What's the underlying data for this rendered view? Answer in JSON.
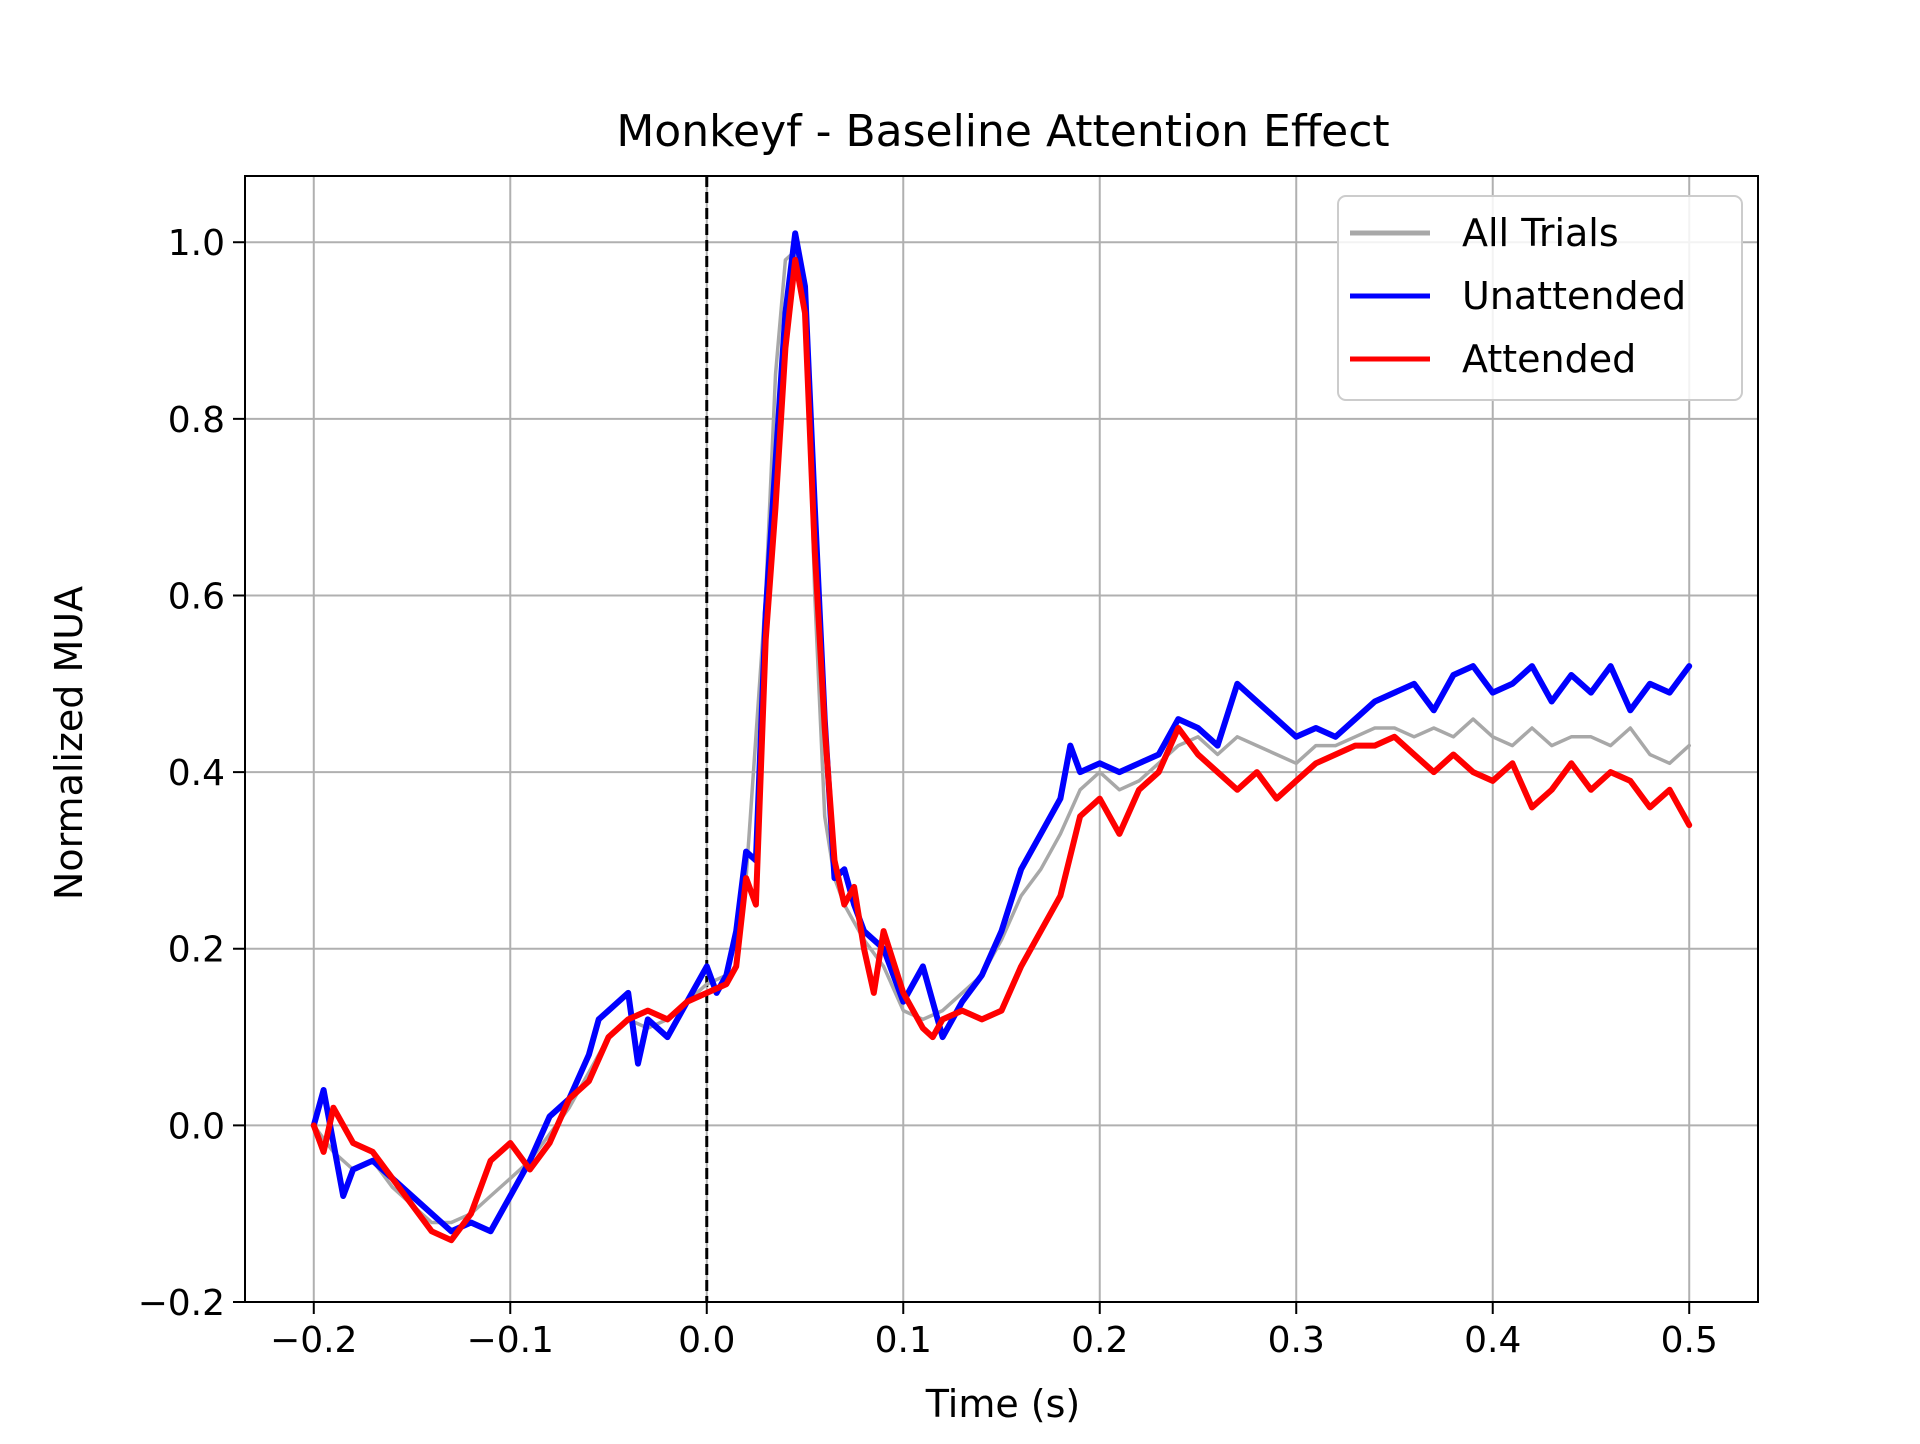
{
  "chart_data": {
    "type": "line",
    "title": "Monkeyf - Baseline Attention Effect",
    "xlabel": "Time (s)",
    "ylabel": "Normalized MUA",
    "xlim": [
      -0.235,
      0.535
    ],
    "ylim": [
      -0.2,
      1.075
    ],
    "xticks": [
      -0.2,
      -0.1,
      0.0,
      0.1,
      0.2,
      0.3,
      0.4,
      0.5
    ],
    "xtick_labels": [
      "−0.2",
      "−0.1",
      "0.0",
      "0.1",
      "0.2",
      "0.3",
      "0.4",
      "0.5"
    ],
    "yticks": [
      -0.2,
      0.0,
      0.2,
      0.4,
      0.6,
      0.8,
      1.0
    ],
    "ytick_labels": [
      "−0.2",
      "0.0",
      "0.2",
      "0.4",
      "0.6",
      "0.8",
      "1.0"
    ],
    "grid": true,
    "legend_position": "top-right",
    "vline": {
      "x": 0.0,
      "style": "dashed",
      "color": "#000000"
    },
    "series": [
      {
        "name": "All Trials",
        "color": "#a8a8a8",
        "x": [
          -0.2,
          -0.19,
          -0.18,
          -0.17,
          -0.16,
          -0.15,
          -0.14,
          -0.13,
          -0.12,
          -0.11,
          -0.1,
          -0.09,
          -0.08,
          -0.07,
          -0.06,
          -0.05,
          -0.04,
          -0.03,
          -0.02,
          -0.01,
          0.0,
          0.01,
          0.02,
          0.03,
          0.035,
          0.04,
          0.045,
          0.05,
          0.055,
          0.06,
          0.065,
          0.07,
          0.08,
          0.09,
          0.1,
          0.11,
          0.12,
          0.13,
          0.14,
          0.15,
          0.16,
          0.17,
          0.18,
          0.19,
          0.2,
          0.21,
          0.22,
          0.23,
          0.24,
          0.25,
          0.26,
          0.27,
          0.28,
          0.29,
          0.3,
          0.31,
          0.32,
          0.33,
          0.34,
          0.35,
          0.36,
          0.37,
          0.38,
          0.39,
          0.4,
          0.41,
          0.42,
          0.43,
          0.44,
          0.45,
          0.46,
          0.47,
          0.48,
          0.49,
          0.5
        ],
        "y": [
          0.0,
          -0.03,
          -0.05,
          -0.04,
          -0.07,
          -0.09,
          -0.11,
          -0.11,
          -0.1,
          -0.08,
          -0.06,
          -0.04,
          -0.01,
          0.02,
          0.06,
          0.1,
          0.12,
          0.11,
          0.12,
          0.14,
          0.16,
          0.17,
          0.28,
          0.6,
          0.85,
          0.98,
          0.99,
          0.95,
          0.6,
          0.35,
          0.28,
          0.25,
          0.21,
          0.18,
          0.13,
          0.12,
          0.13,
          0.15,
          0.17,
          0.21,
          0.26,
          0.29,
          0.33,
          0.38,
          0.4,
          0.38,
          0.39,
          0.41,
          0.43,
          0.44,
          0.42,
          0.44,
          0.43,
          0.42,
          0.41,
          0.43,
          0.43,
          0.44,
          0.45,
          0.45,
          0.44,
          0.45,
          0.44,
          0.46,
          0.44,
          0.43,
          0.45,
          0.43,
          0.44,
          0.44,
          0.43,
          0.45,
          0.42,
          0.41,
          0.43
        ]
      },
      {
        "name": "Unattended",
        "color": "#0000ff",
        "x": [
          -0.2,
          -0.195,
          -0.19,
          -0.185,
          -0.18,
          -0.17,
          -0.16,
          -0.15,
          -0.14,
          -0.13,
          -0.12,
          -0.11,
          -0.1,
          -0.09,
          -0.08,
          -0.07,
          -0.06,
          -0.055,
          -0.05,
          -0.04,
          -0.035,
          -0.03,
          -0.02,
          -0.01,
          0.0,
          0.005,
          0.01,
          0.015,
          0.02,
          0.025,
          0.03,
          0.035,
          0.04,
          0.045,
          0.05,
          0.055,
          0.06,
          0.065,
          0.07,
          0.075,
          0.08,
          0.09,
          0.1,
          0.105,
          0.11,
          0.12,
          0.13,
          0.14,
          0.15,
          0.16,
          0.17,
          0.18,
          0.185,
          0.19,
          0.2,
          0.21,
          0.22,
          0.23,
          0.24,
          0.25,
          0.26,
          0.27,
          0.28,
          0.29,
          0.3,
          0.31,
          0.32,
          0.33,
          0.34,
          0.35,
          0.36,
          0.37,
          0.38,
          0.39,
          0.4,
          0.41,
          0.42,
          0.43,
          0.44,
          0.45,
          0.46,
          0.47,
          0.48,
          0.49,
          0.5
        ],
        "y": [
          0.0,
          0.04,
          -0.02,
          -0.08,
          -0.05,
          -0.04,
          -0.06,
          -0.08,
          -0.1,
          -0.12,
          -0.11,
          -0.12,
          -0.08,
          -0.04,
          0.01,
          0.03,
          0.08,
          0.12,
          0.13,
          0.15,
          0.07,
          0.12,
          0.1,
          0.14,
          0.18,
          0.15,
          0.17,
          0.22,
          0.31,
          0.3,
          0.58,
          0.75,
          0.92,
          1.01,
          0.95,
          0.7,
          0.46,
          0.28,
          0.29,
          0.25,
          0.22,
          0.2,
          0.14,
          0.16,
          0.18,
          0.1,
          0.14,
          0.17,
          0.22,
          0.29,
          0.33,
          0.37,
          0.43,
          0.4,
          0.41,
          0.4,
          0.41,
          0.42,
          0.46,
          0.45,
          0.43,
          0.5,
          0.48,
          0.46,
          0.44,
          0.45,
          0.44,
          0.46,
          0.48,
          0.49,
          0.5,
          0.47,
          0.51,
          0.52,
          0.49,
          0.5,
          0.52,
          0.48,
          0.51,
          0.49,
          0.52,
          0.47,
          0.5,
          0.49,
          0.52
        ]
      },
      {
        "name": "Attended",
        "color": "#ff0000",
        "x": [
          -0.2,
          -0.195,
          -0.19,
          -0.18,
          -0.17,
          -0.16,
          -0.15,
          -0.14,
          -0.13,
          -0.12,
          -0.11,
          -0.1,
          -0.09,
          -0.08,
          -0.07,
          -0.06,
          -0.05,
          -0.04,
          -0.03,
          -0.02,
          -0.01,
          0.0,
          0.01,
          0.015,
          0.02,
          0.025,
          0.03,
          0.035,
          0.04,
          0.045,
          0.05,
          0.055,
          0.06,
          0.065,
          0.07,
          0.075,
          0.08,
          0.085,
          0.09,
          0.1,
          0.11,
          0.115,
          0.12,
          0.13,
          0.14,
          0.15,
          0.16,
          0.17,
          0.18,
          0.19,
          0.2,
          0.21,
          0.22,
          0.23,
          0.24,
          0.25,
          0.26,
          0.27,
          0.28,
          0.29,
          0.3,
          0.31,
          0.32,
          0.33,
          0.34,
          0.35,
          0.36,
          0.37,
          0.38,
          0.39,
          0.4,
          0.41,
          0.42,
          0.43,
          0.44,
          0.45,
          0.46,
          0.47,
          0.48,
          0.49,
          0.5
        ],
        "y": [
          0.0,
          -0.03,
          0.02,
          -0.02,
          -0.03,
          -0.06,
          -0.09,
          -0.12,
          -0.13,
          -0.1,
          -0.04,
          -0.02,
          -0.05,
          -0.02,
          0.03,
          0.05,
          0.1,
          0.12,
          0.13,
          0.12,
          0.14,
          0.15,
          0.16,
          0.18,
          0.28,
          0.25,
          0.55,
          0.7,
          0.88,
          0.98,
          0.92,
          0.65,
          0.45,
          0.3,
          0.25,
          0.27,
          0.2,
          0.15,
          0.22,
          0.15,
          0.11,
          0.1,
          0.12,
          0.13,
          0.12,
          0.13,
          0.18,
          0.22,
          0.26,
          0.35,
          0.37,
          0.33,
          0.38,
          0.4,
          0.45,
          0.42,
          0.4,
          0.38,
          0.4,
          0.37,
          0.39,
          0.41,
          0.42,
          0.43,
          0.43,
          0.44,
          0.42,
          0.4,
          0.42,
          0.4,
          0.39,
          0.41,
          0.36,
          0.38,
          0.41,
          0.38,
          0.4,
          0.39,
          0.36,
          0.38,
          0.34
        ]
      }
    ]
  }
}
